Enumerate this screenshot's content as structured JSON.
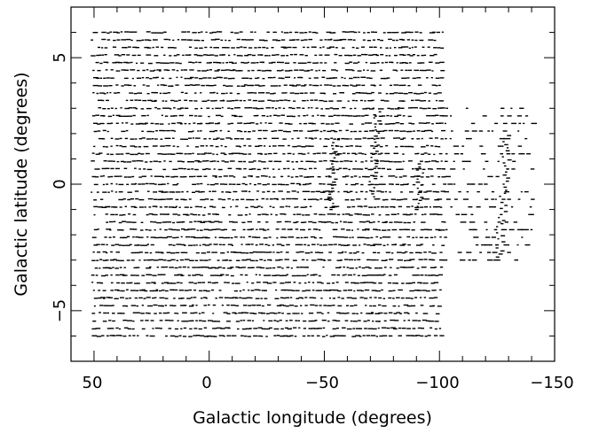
{
  "chart_data": {
    "type": "scatter",
    "xlabel": "Galactic longitude (degrees)",
    "ylabel": "Galactic latitude (degrees)",
    "xlim": [
      60,
      -150
    ],
    "ylim": [
      -7,
      7
    ],
    "x_reversed": true,
    "x_ticks": [
      50,
      0,
      -50,
      -100,
      -150
    ],
    "x_tick_labels": [
      "50",
      "0",
      "−50",
      "−100",
      "−150"
    ],
    "y_ticks": [
      5,
      0,
      -5
    ],
    "y_tick_labels": [
      "5",
      "0",
      "−5"
    ],
    "grid": false,
    "marker": "short horizontal dash",
    "marker_color": "#000000",
    "coverage": {
      "main_block": {
        "l_range": [
          50,
          -101
        ],
        "b_range": [
          -6,
          6
        ]
      },
      "outer_block": {
        "l_range": [
          -101,
          -140
        ],
        "b_range": [
          -3,
          3
        ]
      },
      "row_spacing_deg": 0.3
    },
    "highlighted_features": [
      {
        "l": -52,
        "b_range": [
          -1,
          1.8
        ]
      },
      {
        "l": -70,
        "b_range": [
          -0.5,
          3
        ]
      },
      {
        "l": -90,
        "b_range": [
          -1,
          0.8
        ]
      },
      {
        "l": -125,
        "b_range": [
          -3,
          2
        ]
      }
    ]
  }
}
